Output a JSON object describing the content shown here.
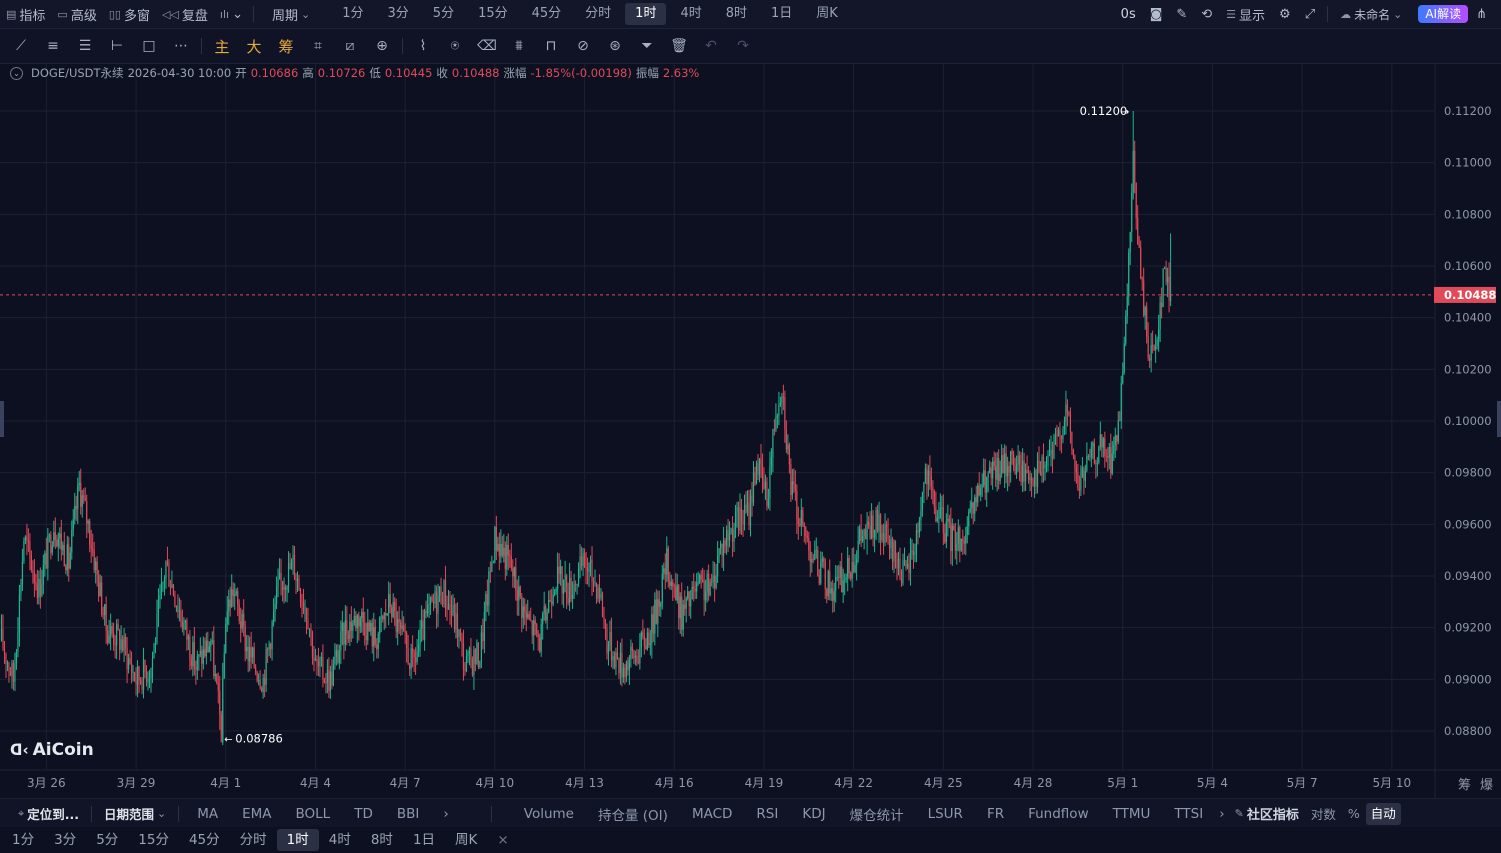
{
  "topbar": {
    "left_items": [
      {
        "icon": "indicator-icon",
        "glyph": "▤",
        "label": "指标"
      },
      {
        "icon": "advanced-icon",
        "glyph": "▭",
        "label": "高级"
      },
      {
        "icon": "multi-window-icon",
        "glyph": "▯▯",
        "label": "多窗"
      },
      {
        "icon": "replay-icon",
        "glyph": "◁◁",
        "label": "复盘"
      },
      {
        "icon": "chart-type-icon",
        "glyph": "ılı",
        "label": "⌄"
      }
    ],
    "period_label": "周期",
    "timeframes": [
      "1分",
      "3分",
      "5分",
      "15分",
      "45分",
      "分时",
      "1时",
      "4时",
      "8时",
      "1日",
      "周K"
    ],
    "active_timeframe": "1时",
    "countdown": "0s",
    "display_label": "显示",
    "layout_name": "未命名",
    "ai_label": "AI解读"
  },
  "toolbar": {
    "tools": [
      "line-tool-icon",
      "parallel-lines-icon",
      "horizontal-lines-icon",
      "ray-icon",
      "rectangle-icon",
      "more-tools-icon"
    ],
    "gold_tools": [
      "主",
      "大",
      "筹"
    ],
    "right_tools": [
      "brush-icon",
      "measure-icon",
      "magnet-icon",
      "ruler-icon",
      "zoom-icon",
      "eraser-icon",
      "pattern-icon",
      "lock-icon",
      "hide-icon",
      "link-icon",
      "filter-icon",
      "delete-icon",
      "undo-icon",
      "redo-icon"
    ]
  },
  "info": {
    "symbol": "DOGE/USDT永续",
    "datetime": "2026-04-30 10:00",
    "open_label": "开",
    "open": "0.10686",
    "high_label": "高",
    "high": "0.10726",
    "low_label": "低",
    "low": "0.10445",
    "close_label": "收",
    "close": "0.10488",
    "change_label": "涨幅",
    "change": "-1.85%(-0.00198)",
    "amp_label": "振幅",
    "amp": "2.63%"
  },
  "chart_data": {
    "type": "candlestick",
    "price_ticks": [
      "0.11200",
      "0.11000",
      "0.10800",
      "0.10600",
      "0.10400",
      "0.10200",
      "0.10000",
      "0.09800",
      "0.09600",
      "0.09400",
      "0.09200",
      "0.09000",
      "0.08800"
    ],
    "price_tick_values": [
      0.112,
      0.11,
      0.108,
      0.106,
      0.104,
      0.102,
      0.1,
      0.098,
      0.096,
      0.094,
      0.092,
      0.09,
      0.088
    ],
    "ylim": [
      0.0869,
      0.1142
    ],
    "date_ticks": [
      "3月 26",
      "3月 29",
      "4月 1",
      "4月 4",
      "4月 7",
      "4月 10",
      "4月 13",
      "4月 16",
      "4月 19",
      "4月 22",
      "4月 25",
      "4月 28",
      "5月 1",
      "5月 4",
      "5月 7",
      "5月 10"
    ],
    "date_tick_index": [
      30,
      90,
      150,
      210,
      270,
      330,
      390,
      450,
      510,
      570,
      630,
      690,
      750,
      810,
      870,
      930
    ],
    "current_price": "0.10488",
    "current_price_value": 0.10488,
    "max_label": "0.11200",
    "max_value": 0.112,
    "max_index": 757,
    "min_label": "0.08786",
    "min_value": 0.08786,
    "min_index": 147,
    "anchors": [
      [
        0,
        0.0915
      ],
      [
        8,
        0.09
      ],
      [
        15,
        0.0955
      ],
      [
        25,
        0.0935
      ],
      [
        35,
        0.096
      ],
      [
        45,
        0.0945
      ],
      [
        52,
        0.0975
      ],
      [
        58,
        0.096
      ],
      [
        70,
        0.092
      ],
      [
        80,
        0.0915
      ],
      [
        90,
        0.09
      ],
      [
        100,
        0.0905
      ],
      [
        110,
        0.0945
      ],
      [
        120,
        0.0925
      ],
      [
        130,
        0.0905
      ],
      [
        140,
        0.0915
      ],
      [
        147,
        0.088
      ],
      [
        150,
        0.0925
      ],
      [
        155,
        0.0935
      ],
      [
        165,
        0.091
      ],
      [
        175,
        0.09
      ],
      [
        185,
        0.0935
      ],
      [
        195,
        0.0945
      ],
      [
        205,
        0.0925
      ],
      [
        210,
        0.0905
      ],
      [
        220,
        0.09
      ],
      [
        230,
        0.092
      ],
      [
        240,
        0.0925
      ],
      [
        250,
        0.0915
      ],
      [
        260,
        0.093
      ],
      [
        265,
        0.092
      ],
      [
        275,
        0.0905
      ],
      [
        285,
        0.0925
      ],
      [
        295,
        0.0935
      ],
      [
        305,
        0.092
      ],
      [
        310,
        0.0905
      ],
      [
        320,
        0.091
      ],
      [
        330,
        0.0955
      ],
      [
        340,
        0.0945
      ],
      [
        350,
        0.0925
      ],
      [
        360,
        0.0915
      ],
      [
        370,
        0.094
      ],
      [
        380,
        0.0935
      ],
      [
        390,
        0.0945
      ],
      [
        400,
        0.0935
      ],
      [
        405,
        0.0915
      ],
      [
        415,
        0.0905
      ],
      [
        425,
        0.091
      ],
      [
        435,
        0.092
      ],
      [
        445,
        0.0945
      ],
      [
        455,
        0.0925
      ],
      [
        465,
        0.0935
      ],
      [
        475,
        0.0935
      ],
      [
        480,
        0.095
      ],
      [
        490,
        0.096
      ],
      [
        500,
        0.0965
      ],
      [
        505,
        0.0985
      ],
      [
        512,
        0.097
      ],
      [
        518,
        0.1005
      ],
      [
        522,
        0.1015
      ],
      [
        528,
        0.0975
      ],
      [
        535,
        0.096
      ],
      [
        545,
        0.0945
      ],
      [
        555,
        0.0935
      ],
      [
        565,
        0.094
      ],
      [
        575,
        0.0955
      ],
      [
        585,
        0.096
      ],
      [
        595,
        0.095
      ],
      [
        605,
        0.094
      ],
      [
        612,
        0.0955
      ],
      [
        618,
        0.098
      ],
      [
        625,
        0.0965
      ],
      [
        635,
        0.0955
      ],
      [
        645,
        0.0955
      ],
      [
        655,
        0.0975
      ],
      [
        665,
        0.098
      ],
      [
        675,
        0.0985
      ],
      [
        685,
        0.098
      ],
      [
        695,
        0.098
      ],
      [
        705,
        0.099
      ],
      [
        712,
        0.1005
      ],
      [
        720,
        0.0975
      ],
      [
        728,
        0.0985
      ],
      [
        735,
        0.099
      ],
      [
        742,
        0.0985
      ],
      [
        748,
        0.1
      ],
      [
        752,
        0.1035
      ],
      [
        757,
        0.11
      ],
      [
        762,
        0.1055
      ],
      [
        768,
        0.1025
      ],
      [
        772,
        0.103
      ],
      [
        778,
        0.106
      ],
      [
        782,
        0.1045
      ]
    ],
    "last_index": 782
  },
  "bottom": {
    "locate_label": "定位到...",
    "range_label": "日期范围",
    "main_indicators": [
      "MA",
      "EMA",
      "BOLL",
      "TD",
      "BBI"
    ],
    "sub_indicators": [
      "Volume",
      "持仓量 (OI)",
      "MACD",
      "RSI",
      "KDJ",
      "爆仓统计",
      "LSUR",
      "FR",
      "Fundflow",
      "TTMU",
      "TTSI"
    ],
    "community_label": "社区指标",
    "log_label": "对数",
    "percent_label": "%",
    "auto_label": "自动",
    "timeframes": [
      "1分",
      "3分",
      "5分",
      "15分",
      "45分",
      "分时",
      "1时",
      "4时",
      "8时",
      "1日",
      "周K"
    ],
    "active_timeframe": "1时",
    "close_glyph": "×"
  },
  "logo": {
    "text": "AiCoin"
  },
  "axis_corner": [
    "筹",
    "爆"
  ],
  "colors": {
    "up": "#21b58f",
    "down": "#e04a59",
    "bg": "#0d1020",
    "grid": "#1b2034",
    "current": "#e04a59"
  }
}
